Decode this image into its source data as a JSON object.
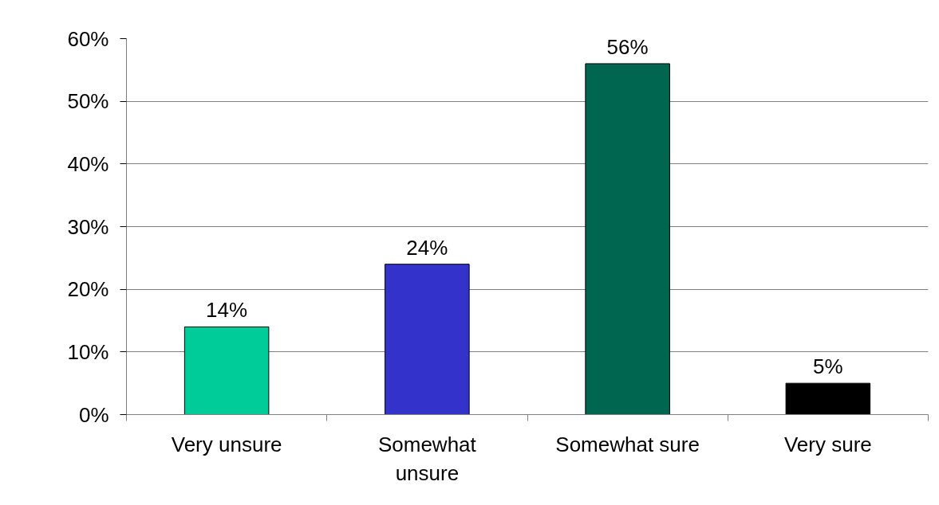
{
  "chart_data": {
    "type": "bar",
    "categories": [
      "Very unsure",
      "Somewhat unsure",
      "Somewhat sure",
      "Very sure"
    ],
    "values": [
      14,
      24,
      56,
      5
    ],
    "colors": [
      "#00cc99",
      "#3333cc",
      "#006650",
      "#000000"
    ],
    "value_labels": [
      "14%",
      "24%",
      "56%",
      "5%"
    ],
    "ylim": [
      0,
      60
    ],
    "yticks": [
      {
        "value": 0,
        "label": "0%"
      },
      {
        "value": 10,
        "label": "10%"
      },
      {
        "value": 20,
        "label": "20%"
      },
      {
        "value": 30,
        "label": "30%"
      },
      {
        "value": 40,
        "label": "40%"
      },
      {
        "value": 50,
        "label": "50%"
      },
      {
        "value": 60,
        "label": "60%"
      }
    ],
    "grid": "y"
  }
}
